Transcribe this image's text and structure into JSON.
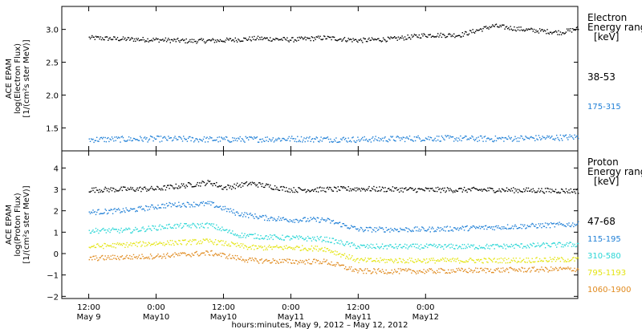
{
  "chart_data": [
    {
      "type": "scatter",
      "ylabel_lines": [
        "ACE EPAM",
        "log(Electron Flux)",
        "[1/(cm²s ster MeV)]"
      ],
      "legend_title_lines": [
        "Electron",
        "Energy range",
        "[keV]"
      ],
      "yticks": [
        "1.5",
        "2.0",
        "2.5",
        "3.0"
      ],
      "ylim": [
        1.15,
        3.35
      ],
      "series": [
        {
          "name": "38-53",
          "color": "#000000",
          "x": [
            0.0,
            0.25,
            0.5,
            0.75,
            1.0,
            1.25,
            1.5,
            1.75,
            2.0,
            2.25,
            2.5,
            2.75,
            3.0,
            3.25,
            3.5,
            3.63
          ],
          "y": [
            2.88,
            2.86,
            2.85,
            2.83,
            2.84,
            2.87,
            2.85,
            2.88,
            2.84,
            2.86,
            2.92,
            2.92,
            3.06,
            3.0,
            2.96,
            3.02
          ]
        },
        {
          "name": "175-315",
          "color": "#1f7fd6",
          "x": [
            0.0,
            0.5,
            1.0,
            1.5,
            2.0,
            2.5,
            3.0,
            3.5,
            3.63
          ],
          "y": [
            1.33,
            1.34,
            1.33,
            1.34,
            1.33,
            1.35,
            1.34,
            1.36,
            1.37
          ]
        }
      ]
    },
    {
      "type": "scatter",
      "ylabel_lines": [
        "ACE EPAM",
        "log(Proton Flux)",
        "[1/(cm²s ster MeV)]"
      ],
      "legend_title_lines": [
        "Proton",
        "Energy range",
        "[keV]"
      ],
      "yticks": [
        "−2",
        "−1",
        "0",
        "1",
        "2",
        "3",
        "4"
      ],
      "ylim": [
        -2.1,
        4.8
      ],
      "series": [
        {
          "name": "47-68",
          "color": "#000000",
          "x": [
            0.0,
            0.5,
            0.9,
            1.0,
            1.2,
            1.5,
            1.75,
            2.0,
            2.5,
            3.0,
            3.63
          ],
          "y": [
            3.0,
            3.05,
            3.35,
            3.1,
            3.3,
            3.0,
            3.02,
            3.05,
            3.0,
            3.0,
            2.95
          ]
        },
        {
          "name": "115-195",
          "color": "#1f7fd6",
          "x": [
            0.0,
            0.3,
            0.6,
            0.9,
            1.1,
            1.3,
            1.5,
            1.75,
            2.0,
            2.5,
            3.0,
            3.63
          ],
          "y": [
            1.95,
            2.05,
            2.3,
            2.35,
            1.9,
            1.7,
            1.6,
            1.6,
            1.15,
            1.15,
            1.25,
            1.4
          ]
        },
        {
          "name": "310-580",
          "color": "#2ad6d6",
          "x": [
            0.0,
            0.3,
            0.6,
            0.9,
            1.1,
            1.3,
            1.5,
            1.75,
            2.0,
            2.5,
            3.0,
            3.63
          ],
          "y": [
            1.1,
            1.1,
            1.3,
            1.35,
            0.9,
            0.8,
            0.75,
            0.7,
            0.35,
            0.35,
            0.35,
            0.45
          ]
        },
        {
          "name": "795-1193",
          "color": "#e4e412",
          "x": [
            0.0,
            0.5,
            0.9,
            1.2,
            1.5,
            1.75,
            2.0,
            2.5,
            3.0,
            3.63
          ],
          "y": [
            0.35,
            0.5,
            0.6,
            0.3,
            0.3,
            0.25,
            -0.3,
            -0.3,
            -0.3,
            -0.25
          ]
        },
        {
          "name": "1060-1900",
          "color": "#e08a1e",
          "x": [
            0.0,
            0.5,
            0.9,
            1.2,
            1.5,
            1.75,
            2.0,
            2.5,
            3.0,
            3.63
          ],
          "y": [
            -0.2,
            -0.1,
            0.05,
            -0.3,
            -0.35,
            -0.35,
            -0.8,
            -0.8,
            -0.75,
            -0.7
          ]
        }
      ]
    }
  ],
  "x_axis": {
    "ticks": [
      {
        "x": 0.0,
        "time": "12:00",
        "date": "May 9"
      },
      {
        "x": 0.5,
        "time": "0:00",
        "date": "May10"
      },
      {
        "x": 1.0,
        "time": "12:00",
        "date": "May10"
      },
      {
        "x": 1.5,
        "time": "0:00",
        "date": "May11"
      },
      {
        "x": 2.0,
        "time": "12:00",
        "date": "May11"
      },
      {
        "x": 2.5,
        "time": "0:00",
        "date": "May12"
      }
    ],
    "xlim": [
      -0.2,
      3.63
    ],
    "caption": "hours:minutes, May  9, 2012 – May 12, 2012"
  }
}
